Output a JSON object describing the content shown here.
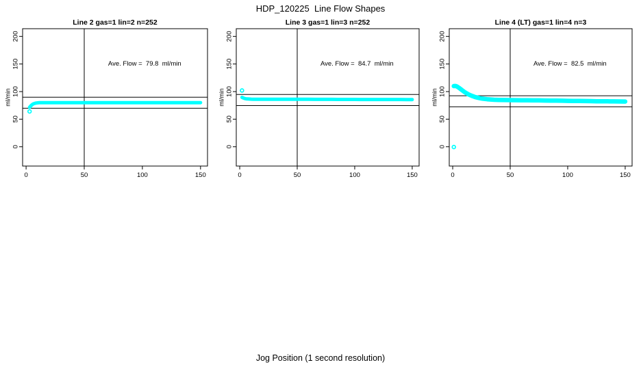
{
  "page_title": "HDP_120225  Line Flow Shapes",
  "x_axis_label": "Jog Position (1 second resolution)",
  "colors": {
    "marker": "#00FFFF",
    "axis": "#000000",
    "background": "#FFFFFF"
  },
  "axes": {
    "xlim": [
      -3,
      156
    ],
    "ylim": [
      -35,
      214
    ],
    "x_ticks": [
      0,
      50,
      100,
      150
    ],
    "y_ticks": [
      0,
      50,
      100,
      150,
      200
    ]
  },
  "chart_data": [
    {
      "type": "scatter",
      "title": "Line 2 gas=1 lin=2 n=252",
      "ylabel": "ml/min",
      "annotation": "Ave. Flow =  79.8  ml/min",
      "ave_flow_ml_min": 79.8,
      "n": 252,
      "ref_lines_y": [
        89.8,
        69.8
      ],
      "ref_line_x": 50,
      "outlier_points": [
        [
          3,
          64
        ]
      ],
      "points": [
        [
          3,
          71.5
        ],
        [
          4,
          74
        ],
        [
          5,
          76
        ],
        [
          6,
          77.5
        ],
        [
          7,
          78.4
        ],
        [
          8,
          79
        ],
        [
          9,
          79.4
        ],
        [
          10,
          79.6
        ],
        [
          11,
          79.8
        ],
        [
          12,
          79.9
        ],
        [
          13,
          80
        ],
        [
          14,
          80
        ],
        [
          15,
          80
        ],
        [
          16,
          80
        ],
        [
          17,
          80
        ],
        [
          18,
          80
        ],
        [
          19,
          80
        ],
        [
          20,
          80
        ],
        [
          25,
          80
        ],
        [
          30,
          80
        ],
        [
          35,
          80
        ],
        [
          40,
          80
        ],
        [
          45,
          80
        ],
        [
          50,
          80
        ],
        [
          55,
          80
        ],
        [
          60,
          80
        ],
        [
          65,
          80
        ],
        [
          70,
          80
        ],
        [
          75,
          80
        ],
        [
          80,
          80
        ],
        [
          85,
          80
        ],
        [
          90,
          80
        ],
        [
          95,
          80
        ],
        [
          100,
          80
        ],
        [
          105,
          80
        ],
        [
          110,
          80
        ],
        [
          115,
          80
        ],
        [
          120,
          80
        ],
        [
          125,
          80
        ],
        [
          130,
          80
        ],
        [
          135,
          80
        ],
        [
          140,
          80
        ],
        [
          145,
          80
        ],
        [
          150,
          80
        ]
      ]
    },
    {
      "type": "scatter",
      "title": "Line 3 gas=1 lin=3 n=252",
      "ylabel": "ml/min",
      "annotation": "Ave. Flow =  84.7  ml/min",
      "ave_flow_ml_min": 84.7,
      "n": 252,
      "ref_lines_y": [
        94.7,
        74.7
      ],
      "ref_line_x": 50,
      "outlier_points": [
        [
          2,
          102
        ]
      ],
      "points": [
        [
          2,
          89.5
        ],
        [
          3,
          88.5
        ],
        [
          4,
          87.7
        ],
        [
          5,
          87.2
        ],
        [
          6,
          86.8
        ],
        [
          7,
          86.6
        ],
        [
          8,
          86.5
        ],
        [
          9,
          86.4
        ],
        [
          10,
          86.3
        ],
        [
          12,
          86.2
        ],
        [
          14,
          86.2
        ],
        [
          16,
          86.1
        ],
        [
          18,
          86.1
        ],
        [
          20,
          86.1
        ],
        [
          25,
          86
        ],
        [
          30,
          86
        ],
        [
          35,
          86
        ],
        [
          40,
          86
        ],
        [
          45,
          86
        ],
        [
          50,
          86
        ],
        [
          55,
          86
        ],
        [
          60,
          86
        ],
        [
          65,
          85.9
        ],
        [
          70,
          85.9
        ],
        [
          75,
          85.9
        ],
        [
          80,
          85.9
        ],
        [
          85,
          85.8
        ],
        [
          90,
          85.8
        ],
        [
          95,
          85.8
        ],
        [
          100,
          85.8
        ],
        [
          105,
          85.7
        ],
        [
          110,
          85.7
        ],
        [
          115,
          85.7
        ],
        [
          120,
          85.7
        ],
        [
          125,
          85.6
        ],
        [
          130,
          85.6
        ],
        [
          135,
          85.6
        ],
        [
          140,
          85.6
        ],
        [
          145,
          85.5
        ],
        [
          150,
          85.5
        ]
      ]
    },
    {
      "type": "scatter",
      "title": "Line 4 (LT) gas=1 lin=4 n=3",
      "ylabel": "ml/min",
      "annotation": "Ave. Flow =  82.5  ml/min",
      "ave_flow_ml_min": 82.5,
      "n": 3,
      "ref_lines_y": [
        92.5,
        72.5
      ],
      "ref_line_x": 50,
      "outlier_points": [
        [
          1,
          -0.5
        ]
      ],
      "points": [
        [
          1,
          110
        ],
        [
          2,
          110.2
        ],
        [
          3,
          109.8
        ],
        [
          4,
          108.8
        ],
        [
          5,
          107.5
        ],
        [
          6,
          106
        ],
        [
          7,
          104.4
        ],
        [
          8,
          102.8
        ],
        [
          9,
          101.2
        ],
        [
          10,
          99.7
        ],
        [
          11,
          98.3
        ],
        [
          12,
          97
        ],
        [
          13,
          95.8
        ],
        [
          14,
          94.7
        ],
        [
          15,
          93.7
        ],
        [
          16,
          92.8
        ],
        [
          17,
          92
        ],
        [
          18,
          91.2
        ],
        [
          19,
          90.5
        ],
        [
          20,
          89.9
        ],
        [
          22,
          88.8
        ],
        [
          24,
          87.9
        ],
        [
          26,
          87.2
        ],
        [
          28,
          86.6
        ],
        [
          30,
          86.1
        ],
        [
          33,
          85.6
        ],
        [
          36,
          85.2
        ],
        [
          40,
          84.9
        ],
        [
          45,
          84.7
        ],
        [
          50,
          84.5
        ],
        [
          55,
          84.4
        ],
        [
          60,
          84.3
        ],
        [
          65,
          84.2
        ],
        [
          70,
          84.1
        ],
        [
          75,
          84
        ],
        [
          80,
          83.8
        ],
        [
          85,
          83.7
        ],
        [
          90,
          83.5
        ],
        [
          95,
          83.4
        ],
        [
          100,
          83.2
        ],
        [
          105,
          83.1
        ],
        [
          110,
          82.9
        ],
        [
          115,
          82.8
        ],
        [
          120,
          82.7
        ],
        [
          125,
          82.5
        ],
        [
          130,
          82.4
        ],
        [
          135,
          82.3
        ],
        [
          140,
          82.2
        ],
        [
          145,
          82.1
        ],
        [
          150,
          82
        ]
      ]
    }
  ]
}
